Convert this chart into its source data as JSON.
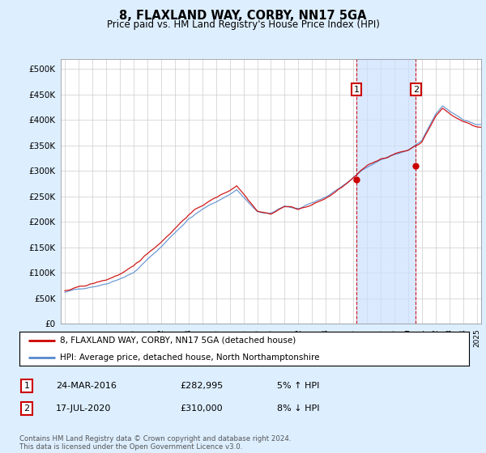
{
  "title": "8, FLAXLAND WAY, CORBY, NN17 5GA",
  "subtitle": "Price paid vs. HM Land Registry's House Price Index (HPI)",
  "ytick_vals": [
    0,
    50000,
    100000,
    150000,
    200000,
    250000,
    300000,
    350000,
    400000,
    450000,
    500000
  ],
  "ylim": [
    0,
    520000
  ],
  "xlim_start": 1994.7,
  "xlim_end": 2025.3,
  "hpi_color": "#5588cc",
  "price_color": "#cc0000",
  "marker1_date": 2016.22,
  "marker2_date": 2020.54,
  "marker1_price": 282995,
  "marker2_price": 310000,
  "legend_line1": "8, FLAXLAND WAY, CORBY, NN17 5GA (detached house)",
  "legend_line2": "HPI: Average price, detached house, North Northamptonshire",
  "table_row1": [
    "1",
    "24-MAR-2016",
    "£282,995",
    "5% ↑ HPI"
  ],
  "table_row2": [
    "2",
    "17-JUL-2020",
    "£310,000",
    "8% ↓ HPI"
  ],
  "footer": "Contains HM Land Registry data © Crown copyright and database right 2024.\nThis data is licensed under the Open Government Licence v3.0.",
  "background_color": "#ddeeff",
  "plot_bg_color": "#ffffff",
  "grid_color": "#cccccc",
  "shade_color": "#cce0ff",
  "annotation_box_color": "#cc0000"
}
